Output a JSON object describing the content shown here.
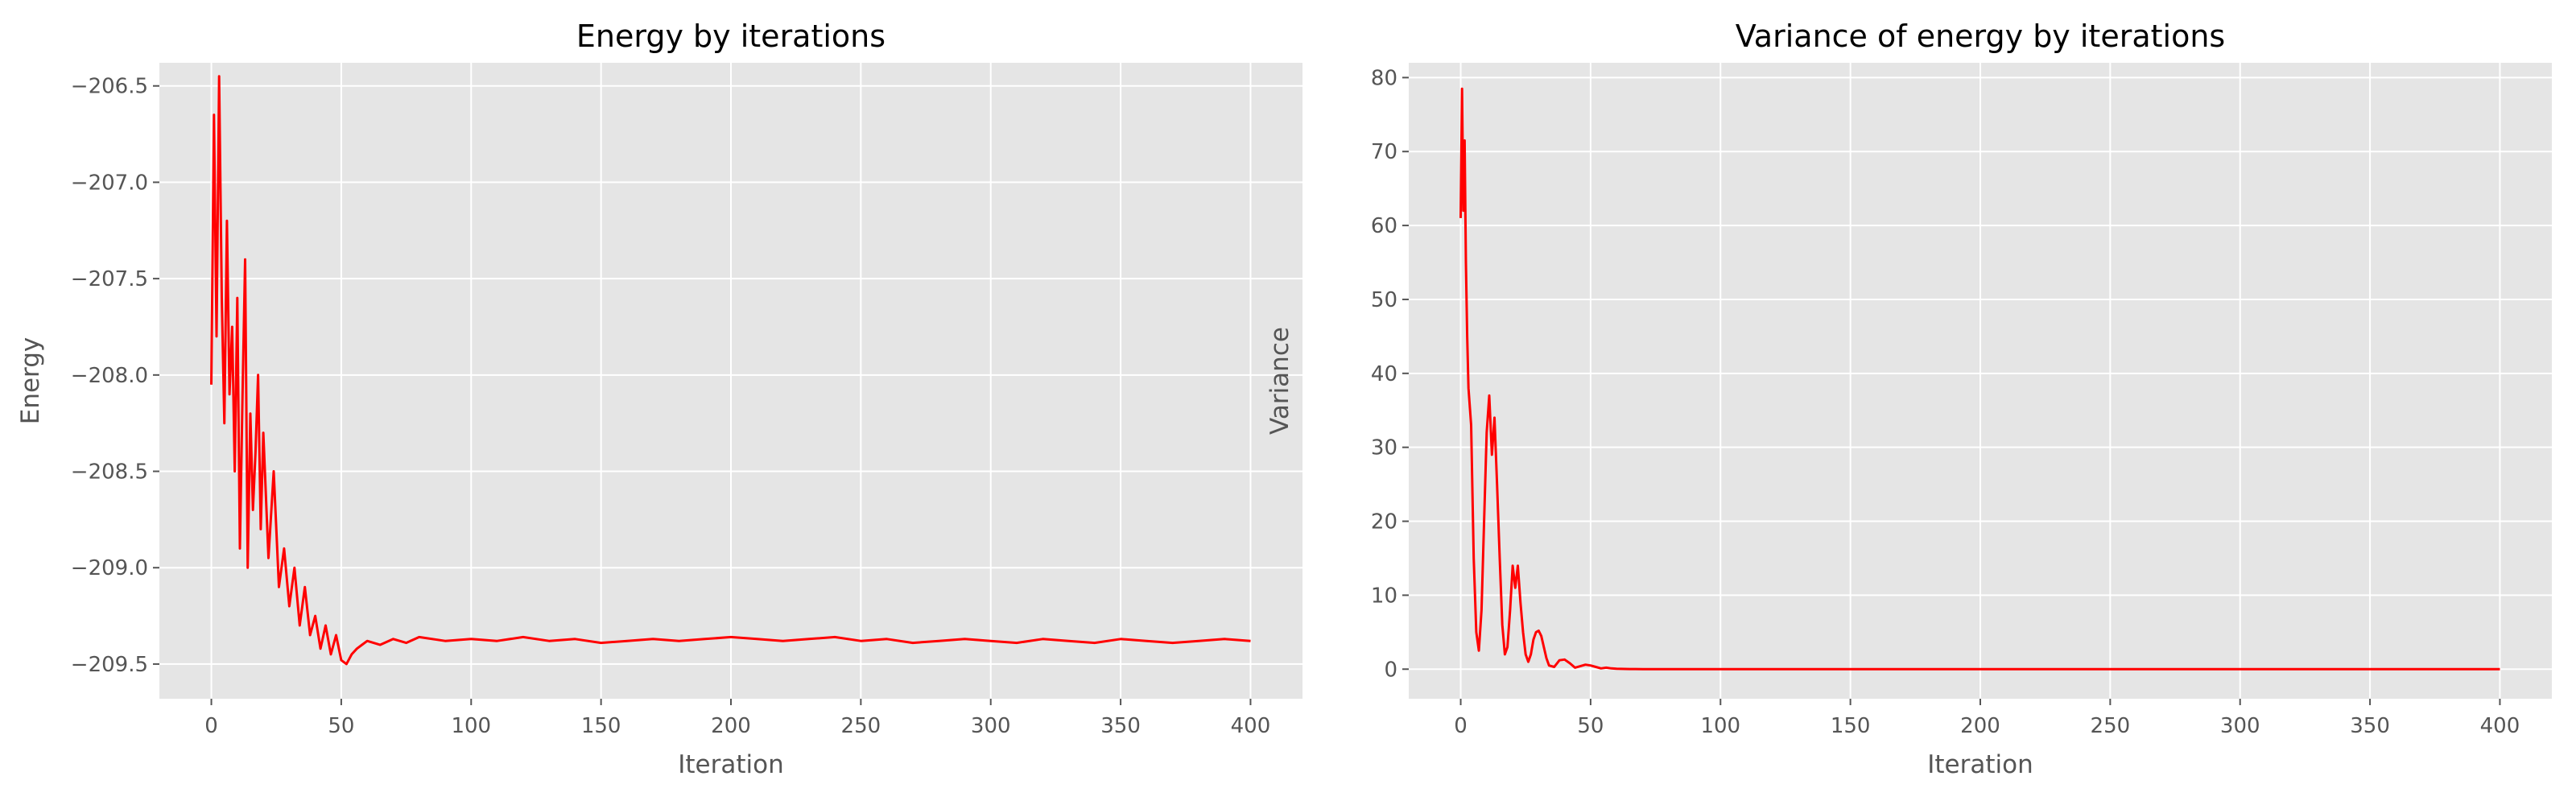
{
  "chart_data": [
    {
      "type": "line",
      "title": "Energy by iterations",
      "xlabel": "Iteration",
      "ylabel": "Energy",
      "xlim": [
        -20,
        420
      ],
      "ylim": [
        -209.68,
        -206.38
      ],
      "xticks": [
        0,
        50,
        100,
        150,
        200,
        250,
        300,
        350,
        400
      ],
      "yticks": [
        -209.5,
        -209.0,
        -208.5,
        -208.0,
        -207.5,
        -207.0,
        -206.5
      ],
      "ytick_labels": [
        "−209.5",
        "−209.0",
        "−208.5",
        "−208.0",
        "−207.5",
        "−207.0",
        "−206.5"
      ],
      "grid": true,
      "style": "ggplot",
      "series": [
        {
          "color": "#ff0000",
          "x": [
            0,
            1,
            2,
            3,
            4,
            5,
            6,
            7,
            8,
            9,
            10,
            11,
            12,
            13,
            14,
            15,
            16,
            17,
            18,
            19,
            20,
            22,
            24,
            26,
            28,
            30,
            32,
            34,
            36,
            38,
            40,
            42,
            44,
            46,
            48,
            50,
            52,
            54,
            56,
            58,
            60,
            65,
            70,
            75,
            80,
            90,
            100,
            110,
            120,
            130,
            140,
            150,
            160,
            170,
            180,
            190,
            200,
            210,
            220,
            230,
            240,
            250,
            260,
            270,
            280,
            290,
            300,
            310,
            320,
            330,
            340,
            350,
            360,
            370,
            380,
            390,
            400
          ],
          "y": [
            -208.05,
            -206.65,
            -207.8,
            -206.45,
            -207.6,
            -208.25,
            -207.2,
            -208.1,
            -207.75,
            -208.5,
            -207.6,
            -208.9,
            -208.1,
            -207.4,
            -209.0,
            -208.2,
            -208.7,
            -208.4,
            -208.0,
            -208.8,
            -208.3,
            -208.95,
            -208.5,
            -209.1,
            -208.9,
            -209.2,
            -209.0,
            -209.3,
            -209.1,
            -209.35,
            -209.25,
            -209.42,
            -209.3,
            -209.45,
            -209.35,
            -209.48,
            -209.5,
            -209.45,
            -209.42,
            -209.4,
            -209.38,
            -209.4,
            -209.37,
            -209.39,
            -209.36,
            -209.38,
            -209.37,
            -209.38,
            -209.36,
            -209.38,
            -209.37,
            -209.39,
            -209.38,
            -209.37,
            -209.38,
            -209.37,
            -209.36,
            -209.37,
            -209.38,
            -209.37,
            -209.36,
            -209.38,
            -209.37,
            -209.39,
            -209.38,
            -209.37,
            -209.38,
            -209.39,
            -209.37,
            -209.38,
            -209.39,
            -209.37,
            -209.38,
            -209.39,
            -209.38,
            -209.37,
            -209.38
          ]
        }
      ]
    },
    {
      "type": "line",
      "title": "Variance of energy by iterations",
      "xlabel": "Iteration",
      "ylabel": "Variance",
      "xlim": [
        -20,
        420
      ],
      "ylim": [
        -4,
        82
      ],
      "xticks": [
        0,
        50,
        100,
        150,
        200,
        250,
        300,
        350,
        400
      ],
      "yticks": [
        0,
        10,
        20,
        30,
        40,
        50,
        60,
        70,
        80
      ],
      "ytick_labels": [
        "0",
        "10",
        "20",
        "30",
        "40",
        "50",
        "60",
        "70",
        "80"
      ],
      "grid": true,
      "style": "ggplot",
      "series": [
        {
          "color": "#ff0000",
          "x": [
            0,
            0.5,
            1,
            1.5,
            2,
            2.5,
            3,
            4,
            5,
            6,
            7,
            8,
            9,
            10,
            11,
            12,
            13,
            14,
            15,
            16,
            17,
            18,
            19,
            20,
            21,
            22,
            23,
            24,
            25,
            26,
            27,
            28,
            29,
            30,
            31,
            32,
            33,
            34,
            36,
            38,
            40,
            42,
            44,
            46,
            48,
            50,
            52,
            54,
            56,
            58,
            60,
            65,
            70,
            80,
            100,
            150,
            200,
            250,
            300,
            350,
            400
          ],
          "y": [
            61,
            78.5,
            62,
            71.5,
            55,
            45,
            38,
            33,
            15,
            5,
            2.5,
            8,
            20,
            32,
            37,
            29,
            34,
            25,
            15,
            6,
            2,
            3,
            8,
            14,
            11,
            14,
            9,
            5,
            2,
            1,
            2,
            4,
            5,
            5.2,
            4.5,
            3,
            1.5,
            0.5,
            0.3,
            1.2,
            1.3,
            0.8,
            0.2,
            0.4,
            0.6,
            0.5,
            0.3,
            0.1,
            0.2,
            0.1,
            0.05,
            0.02,
            0.01,
            0,
            0,
            0,
            0,
            0,
            0,
            0,
            0
          ]
        }
      ]
    }
  ]
}
